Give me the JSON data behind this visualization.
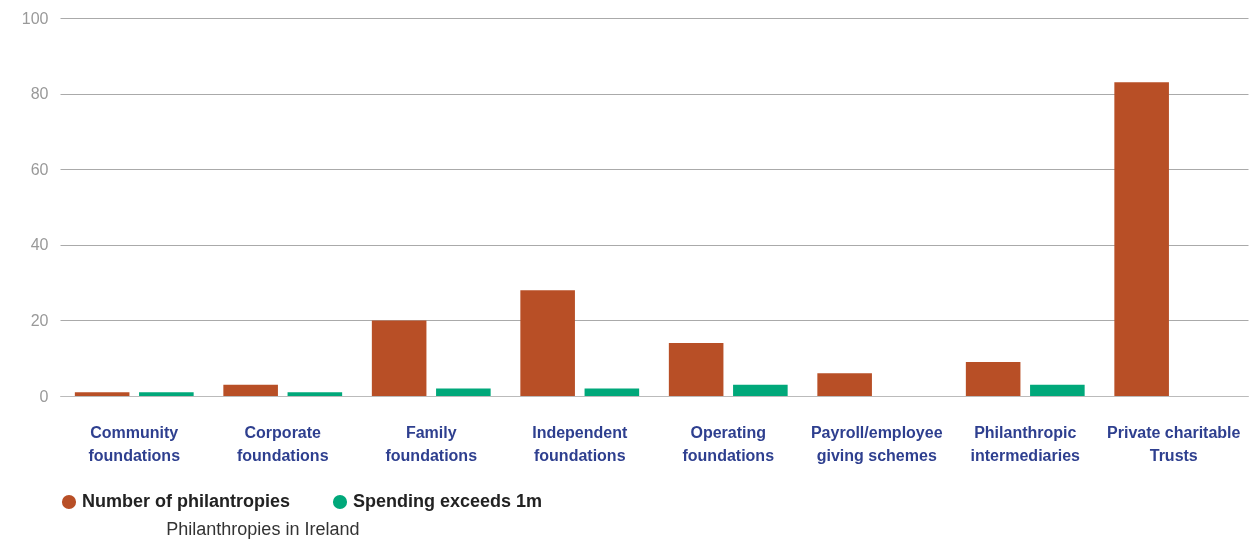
{
  "chart_data": {
    "type": "bar",
    "title": "Philanthropies in Ireland",
    "categories": [
      "Community foundations",
      "Corporate foundations",
      "Family foundations",
      "Independent foundations",
      "Operating foundations",
      "Payroll/employee giving schemes",
      "Philanthropic intermediaries",
      "Private charitable Trusts"
    ],
    "series": [
      {
        "name": "Number of philantropies",
        "color": "#b84f26",
        "values": [
          1,
          3,
          20,
          28,
          14,
          6,
          9,
          83
        ]
      },
      {
        "name": "Spending exceeds 1m",
        "color": "#00a87a",
        "values": [
          1,
          1,
          2,
          2,
          3,
          null,
          3,
          null
        ]
      }
    ],
    "ylim": [
      0,
      100
    ],
    "yticks": [
      0,
      20,
      40,
      60,
      80,
      100
    ],
    "grid": "y",
    "legend": "bottom"
  }
}
